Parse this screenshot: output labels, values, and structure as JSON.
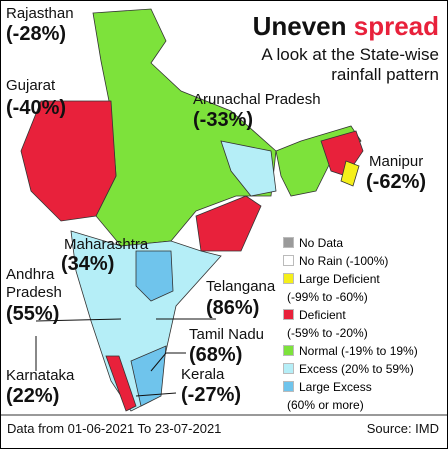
{
  "title": {
    "lead": "Uneven",
    "accent": "spread"
  },
  "subtitle": [
    "A look at the State-wise",
    "rainfall pattern"
  ],
  "states": [
    {
      "name": "Rajasthan",
      "value": "(-28%)"
    },
    {
      "name": "Gujarat",
      "value": "(-40%)"
    },
    {
      "name": "Arunachal Pradesh",
      "value": "(-33%)"
    },
    {
      "name": "Manipur",
      "value": "(-62%)"
    },
    {
      "name": "Maharashtra",
      "value": "(34%)"
    },
    {
      "name": "Andhra Pradesh",
      "value": "(55%)"
    },
    {
      "name": "Telangana",
      "value": "(86%)"
    },
    {
      "name": "Tamil Nadu",
      "value": "(68%)"
    },
    {
      "name": "Kerala",
      "value": "(-27%)"
    },
    {
      "name": "Karnataka",
      "value": "(22%)"
    }
  ],
  "legend": [
    {
      "label": "No Data",
      "color": "#9a9a9a"
    },
    {
      "label": "No Rain (-100%)",
      "color": "#ffffff"
    },
    {
      "label": "Large Deficient",
      "range": "(-99% to -60%)",
      "color": "#f5ef1a"
    },
    {
      "label": "Deficient",
      "range": "(-59% to -20%)",
      "color": "#e8213b"
    },
    {
      "label": "Normal (-19% to 19%)",
      "color": "#7de23b"
    },
    {
      "label": "Excess (20% to 59%)",
      "color": "#b5eef7"
    },
    {
      "label": "Large Excess",
      "range": "(60% or more)",
      "color": "#6fc4ec"
    }
  ],
  "footer": {
    "period": "Data from 01-06-2021 To 23-07-2021",
    "source": "Source: IMD"
  }
}
